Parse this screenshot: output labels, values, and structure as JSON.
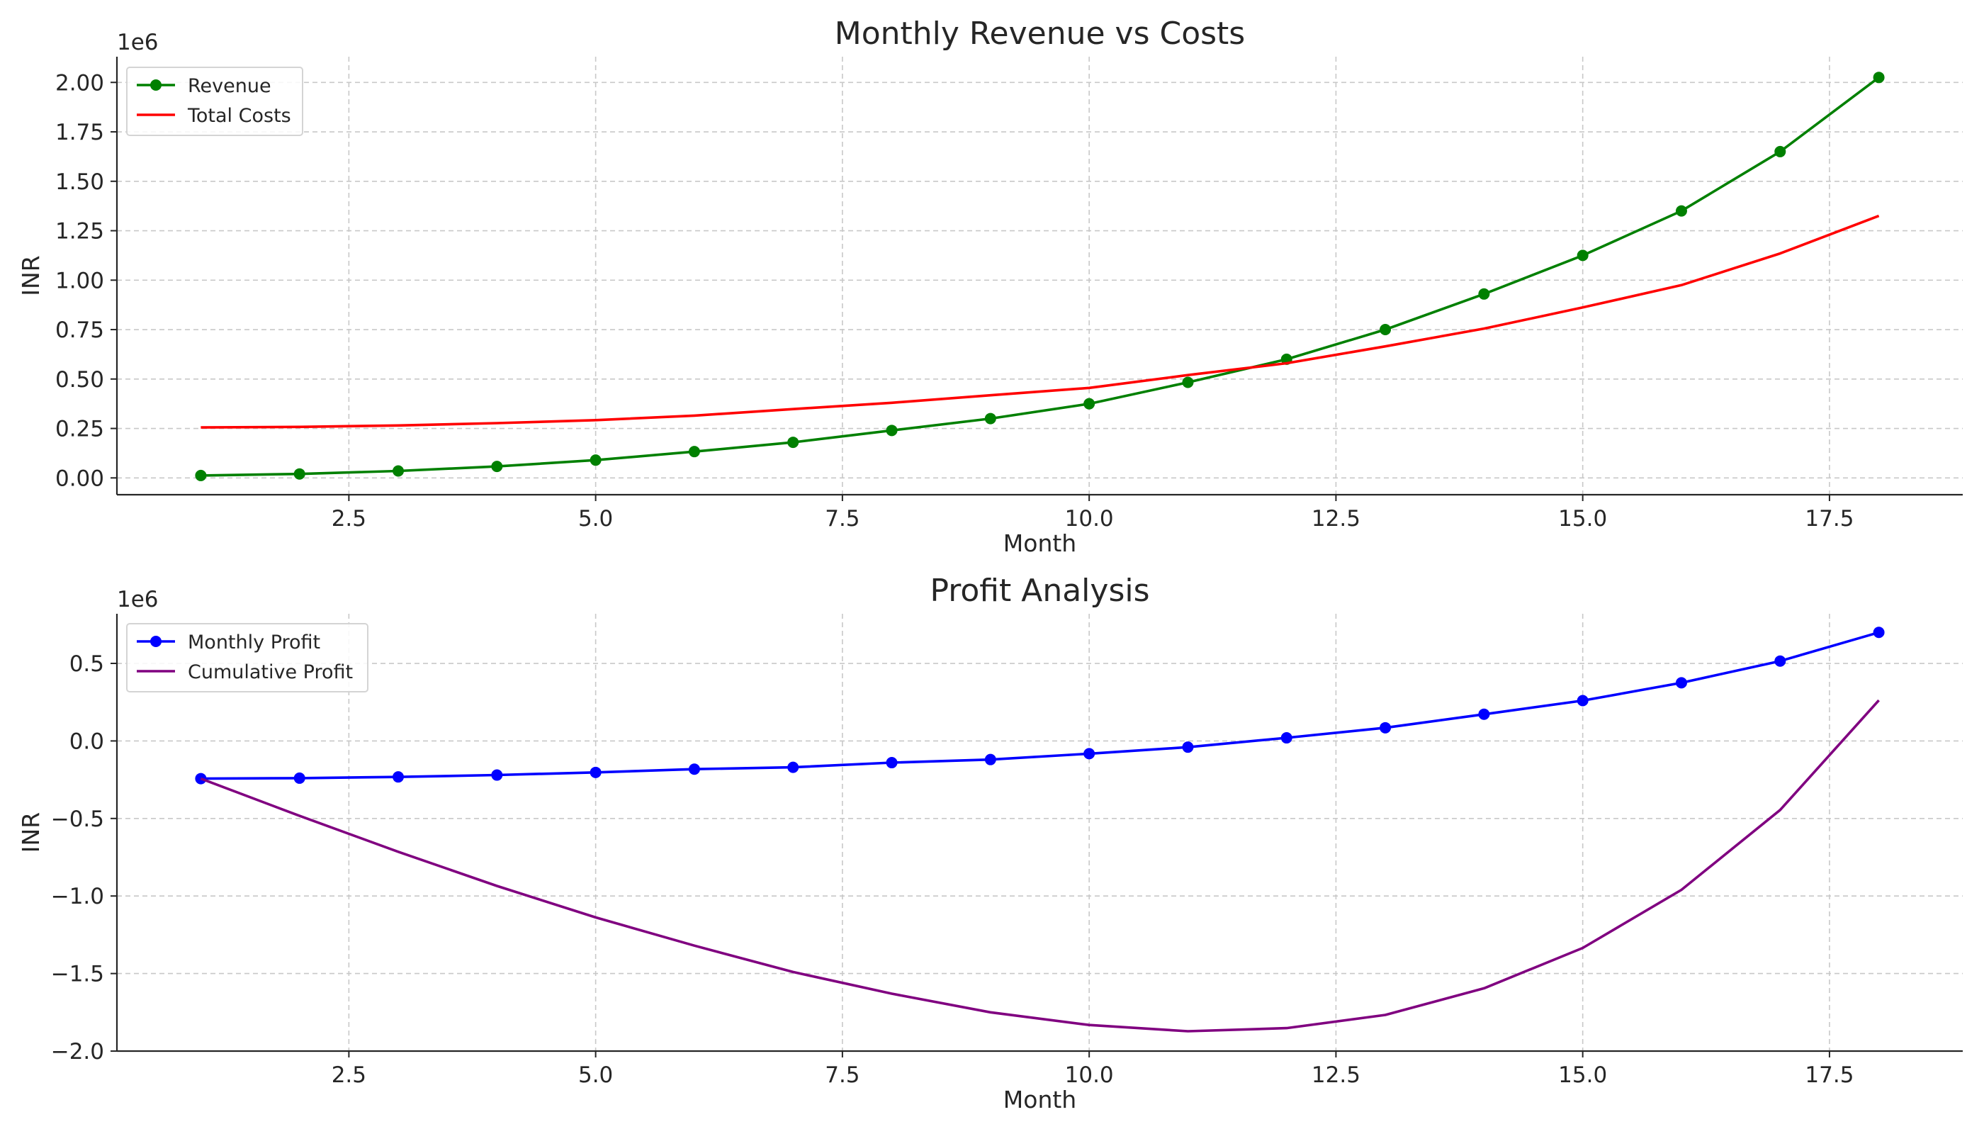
{
  "chart_data": [
    {
      "type": "line",
      "title": "Monthly Revenue vs Costs",
      "xlabel": "Month",
      "ylabel": "INR",
      "y_offset_label": "1e6",
      "xlim": [
        0.15,
        18.85
      ],
      "ylim": [
        -0.085,
        2.13
      ],
      "x_ticks": [
        2.5,
        5.0,
        7.5,
        10.0,
        12.5,
        15.0,
        17.5
      ],
      "x_tick_labels": [
        "2.5",
        "5.0",
        "7.5",
        "10.0",
        "12.5",
        "15.0",
        "17.5"
      ],
      "y_ticks": [
        0,
        0.25,
        0.5,
        0.75,
        1.0,
        1.25,
        1.5,
        1.75,
        2.0
      ],
      "y_tick_labels": [
        "0.00",
        "0.25",
        "0.50",
        "0.75",
        "1.00",
        "1.25",
        "1.50",
        "1.75",
        "2.00"
      ],
      "grid": true,
      "legend_position": "top-left",
      "x": [
        1,
        2,
        3,
        4,
        5,
        6,
        7,
        8,
        9,
        10,
        11,
        12,
        13,
        14,
        15,
        16,
        17,
        18
      ],
      "series": [
        {
          "name": "Revenue",
          "color": "#008000",
          "marker": "circle",
          "values": [
            0.012,
            0.02,
            0.035,
            0.058,
            0.09,
            0.133,
            0.18,
            0.24,
            0.3,
            0.375,
            0.483,
            0.6,
            0.75,
            0.93,
            1.125,
            1.35,
            1.65,
            2.025
          ]
        },
        {
          "name": "Total Costs",
          "color": "#ff0000",
          "marker": "none",
          "values": [
            0.255,
            0.258,
            0.265,
            0.277,
            0.292,
            0.315,
            0.348,
            0.38,
            0.418,
            0.455,
            0.52,
            0.58,
            0.665,
            0.755,
            0.862,
            0.975,
            1.135,
            1.325
          ]
        }
      ]
    },
    {
      "type": "line",
      "title": "Profit Analysis",
      "xlabel": "Month",
      "ylabel": "INR",
      "y_offset_label": "1e6",
      "xlim": [
        0.15,
        18.85
      ],
      "ylim": [
        -2.0,
        0.82
      ],
      "x_ticks": [
        2.5,
        5.0,
        7.5,
        10.0,
        12.5,
        15.0,
        17.5
      ],
      "x_tick_labels": [
        "2.5",
        "5.0",
        "7.5",
        "10.0",
        "12.5",
        "15.0",
        "17.5"
      ],
      "y_ticks": [
        -2.0,
        -1.5,
        -1.0,
        -0.5,
        0.0,
        0.5
      ],
      "y_tick_labels": [
        "−2.0",
        "−1.5",
        "−1.0",
        "−0.5",
        "0.0",
        "0.5"
      ],
      "grid": true,
      "legend_position": "top-left",
      "x": [
        1,
        2,
        3,
        4,
        5,
        6,
        7,
        8,
        9,
        10,
        11,
        12,
        13,
        14,
        15,
        16,
        17,
        18
      ],
      "series": [
        {
          "name": "Monthly Profit",
          "color": "#0000ff",
          "marker": "circle",
          "values": [
            -0.243,
            -0.24,
            -0.232,
            -0.22,
            -0.203,
            -0.182,
            -0.17,
            -0.14,
            -0.12,
            -0.082,
            -0.04,
            0.02,
            0.085,
            0.172,
            0.26,
            0.375,
            0.515,
            0.7
          ]
        },
        {
          "name": "Cumulative Profit",
          "color": "#800080",
          "marker": "none",
          "values": [
            -0.243,
            -0.483,
            -0.715,
            -0.935,
            -1.138,
            -1.32,
            -1.49,
            -1.63,
            -1.75,
            -1.832,
            -1.872,
            -1.852,
            -1.767,
            -1.595,
            -1.335,
            -0.96,
            -0.445,
            0.262
          ]
        }
      ]
    }
  ]
}
